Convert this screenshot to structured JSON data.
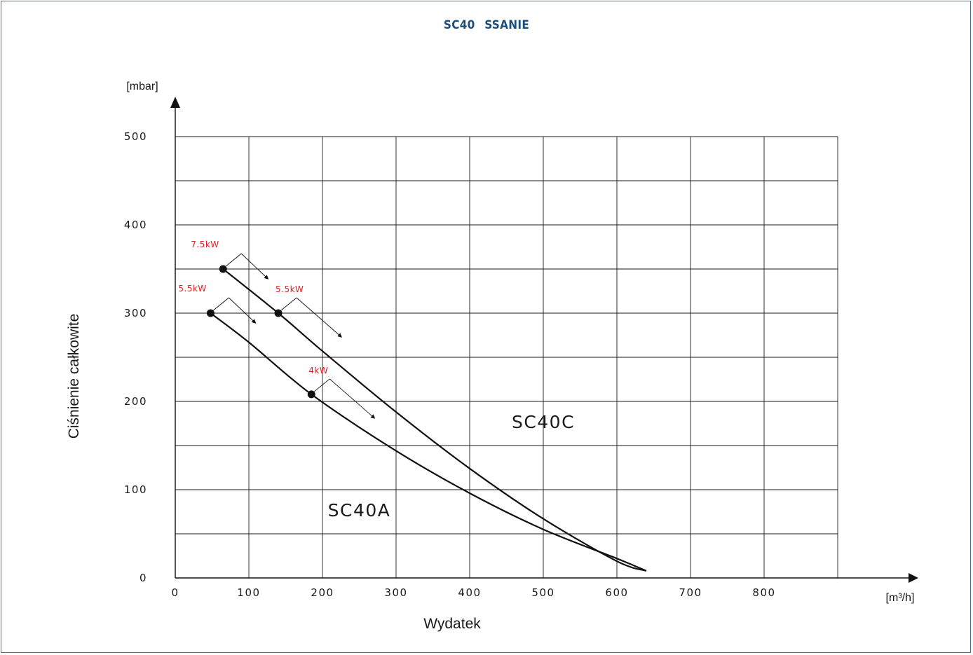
{
  "title": "SC40   SSANIE",
  "chart_data": {
    "type": "line",
    "title": "SC40   SSANIE",
    "xlabel": "Wydatek",
    "ylabel": "Ciśnienie całkowite",
    "x_unit": "[m³/h]",
    "y_unit": "[mbar]",
    "xlim": [
      0,
      900
    ],
    "ylim": [
      0,
      500
    ],
    "x_ticks": [
      "0",
      "100",
      "200",
      "300",
      "400",
      "500",
      "600",
      "700",
      "800"
    ],
    "y_ticks": [
      "0",
      "100",
      "200",
      "300",
      "400",
      "500"
    ],
    "grid": true,
    "series": [
      {
        "name": "SC40C",
        "x": [
          65,
          140,
          200,
          300,
          400,
          500,
          600,
          640
        ],
        "y": [
          350,
          300,
          257,
          188,
          124,
          67,
          19,
          8
        ],
        "label_at": [
          500,
          170
        ],
        "power_points": [
          {
            "x": 65,
            "y": 350,
            "label": "7.5kW",
            "label_side": "left"
          },
          {
            "x": 140,
            "y": 300,
            "label": "5.5kW",
            "label_side": "right"
          }
        ]
      },
      {
        "name": "SC40A",
        "x": [
          48,
          100,
          185,
          300,
          400,
          500,
          600,
          640
        ],
        "y": [
          300,
          267,
          208,
          144,
          96,
          55,
          22,
          8
        ],
        "label_at": [
          250,
          70
        ],
        "power_points": [
          {
            "x": 48,
            "y": 300,
            "label": "5.5kW",
            "label_side": "left"
          },
          {
            "x": 185,
            "y": 208,
            "label": "4kW",
            "label_side": "right"
          }
        ]
      }
    ]
  }
}
